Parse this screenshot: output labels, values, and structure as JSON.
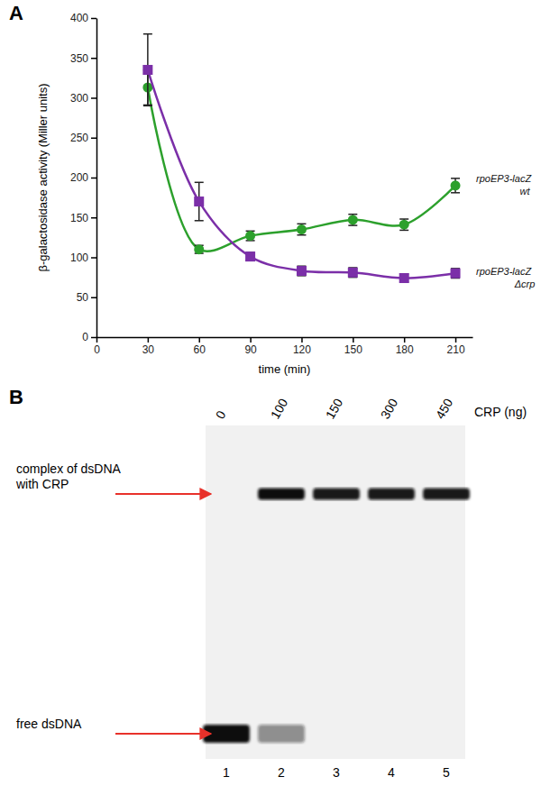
{
  "chart_data": [
    {
      "type": "line",
      "title": "A",
      "xlabel": "time (min)",
      "ylabel": "β-galactosidase activity (Miller units)",
      "x": [
        30,
        60,
        90,
        120,
        150,
        180,
        210
      ],
      "xlim": [
        0,
        220
      ],
      "xticks": [
        0,
        30,
        60,
        90,
        120,
        150,
        180,
        210
      ],
      "ylim": [
        0,
        400
      ],
      "yticks": [
        0,
        50,
        100,
        150,
        200,
        250,
        300,
        350,
        400
      ],
      "series": [
        {
          "name": "rpoEP3-lacZ wt",
          "color": "#2ca02c",
          "marker": "circle",
          "values": [
            313,
            110,
            127,
            135,
            147,
            141,
            190
          ],
          "errors": [
            22,
            5,
            6,
            7,
            7,
            7,
            9
          ]
        },
        {
          "name": "rpoEP3-lacZ Δcrp",
          "color": "#7b2fa8",
          "marker": "square",
          "values": [
            335,
            170,
            101,
            83,
            81,
            74,
            80
          ],
          "errors": [
            45,
            24,
            5,
            6,
            6,
            5,
            6
          ]
        }
      ]
    },
    {
      "type": "gel",
      "title": "B",
      "xlabel": "CRP (ng)",
      "categories": [
        "1",
        "2",
        "3",
        "4",
        "5"
      ],
      "crp_ng": [
        0,
        100,
        150,
        300,
        450
      ],
      "series": [
        {
          "name": "complex of dsDNA with CRP",
          "color": "#e8312a",
          "values": [
            0,
            1,
            0.95,
            0.95,
            0.95
          ]
        },
        {
          "name": "free dsDNA",
          "color": "#e8312a",
          "values": [
            1,
            0.45,
            0,
            0,
            0
          ]
        }
      ]
    }
  ]
}
